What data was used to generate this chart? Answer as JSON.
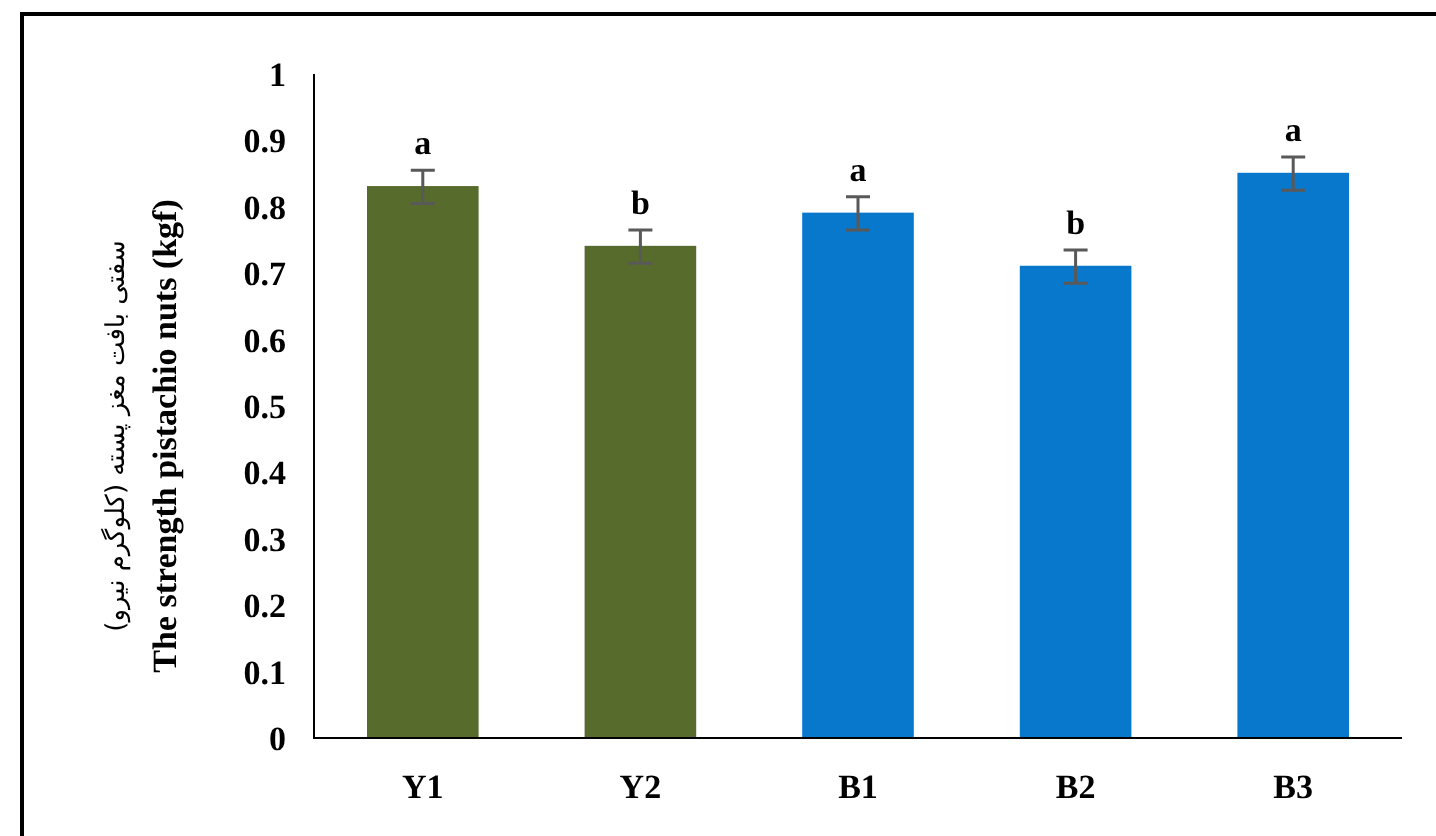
{
  "chart_data": {
    "type": "bar",
    "ylabel": "The strength pistachio nuts (kgf)",
    "annotations": [
      "سفتی بافت مغز پسته (کلوگرم نیرو)"
    ],
    "categories": [
      "Y1",
      "Y2",
      "B1",
      "B2",
      "B3"
    ],
    "values": [
      0.83,
      0.74,
      0.79,
      0.71,
      0.85
    ],
    "errors": [
      0.025,
      0.025,
      0.025,
      0.025,
      0.025
    ],
    "colors": [
      "#566b2c",
      "#566b2c",
      "#0878cc",
      "#0878cc",
      "#0878cc"
    ],
    "value_labels": [
      "a",
      "b",
      "a",
      "b",
      "a"
    ],
    "ylim": [
      0,
      1
    ],
    "yticks": [
      0,
      0.1,
      0.2,
      0.3,
      0.4,
      0.5,
      0.6,
      0.7,
      0.8,
      0.9,
      1
    ],
    "grid": false
  }
}
